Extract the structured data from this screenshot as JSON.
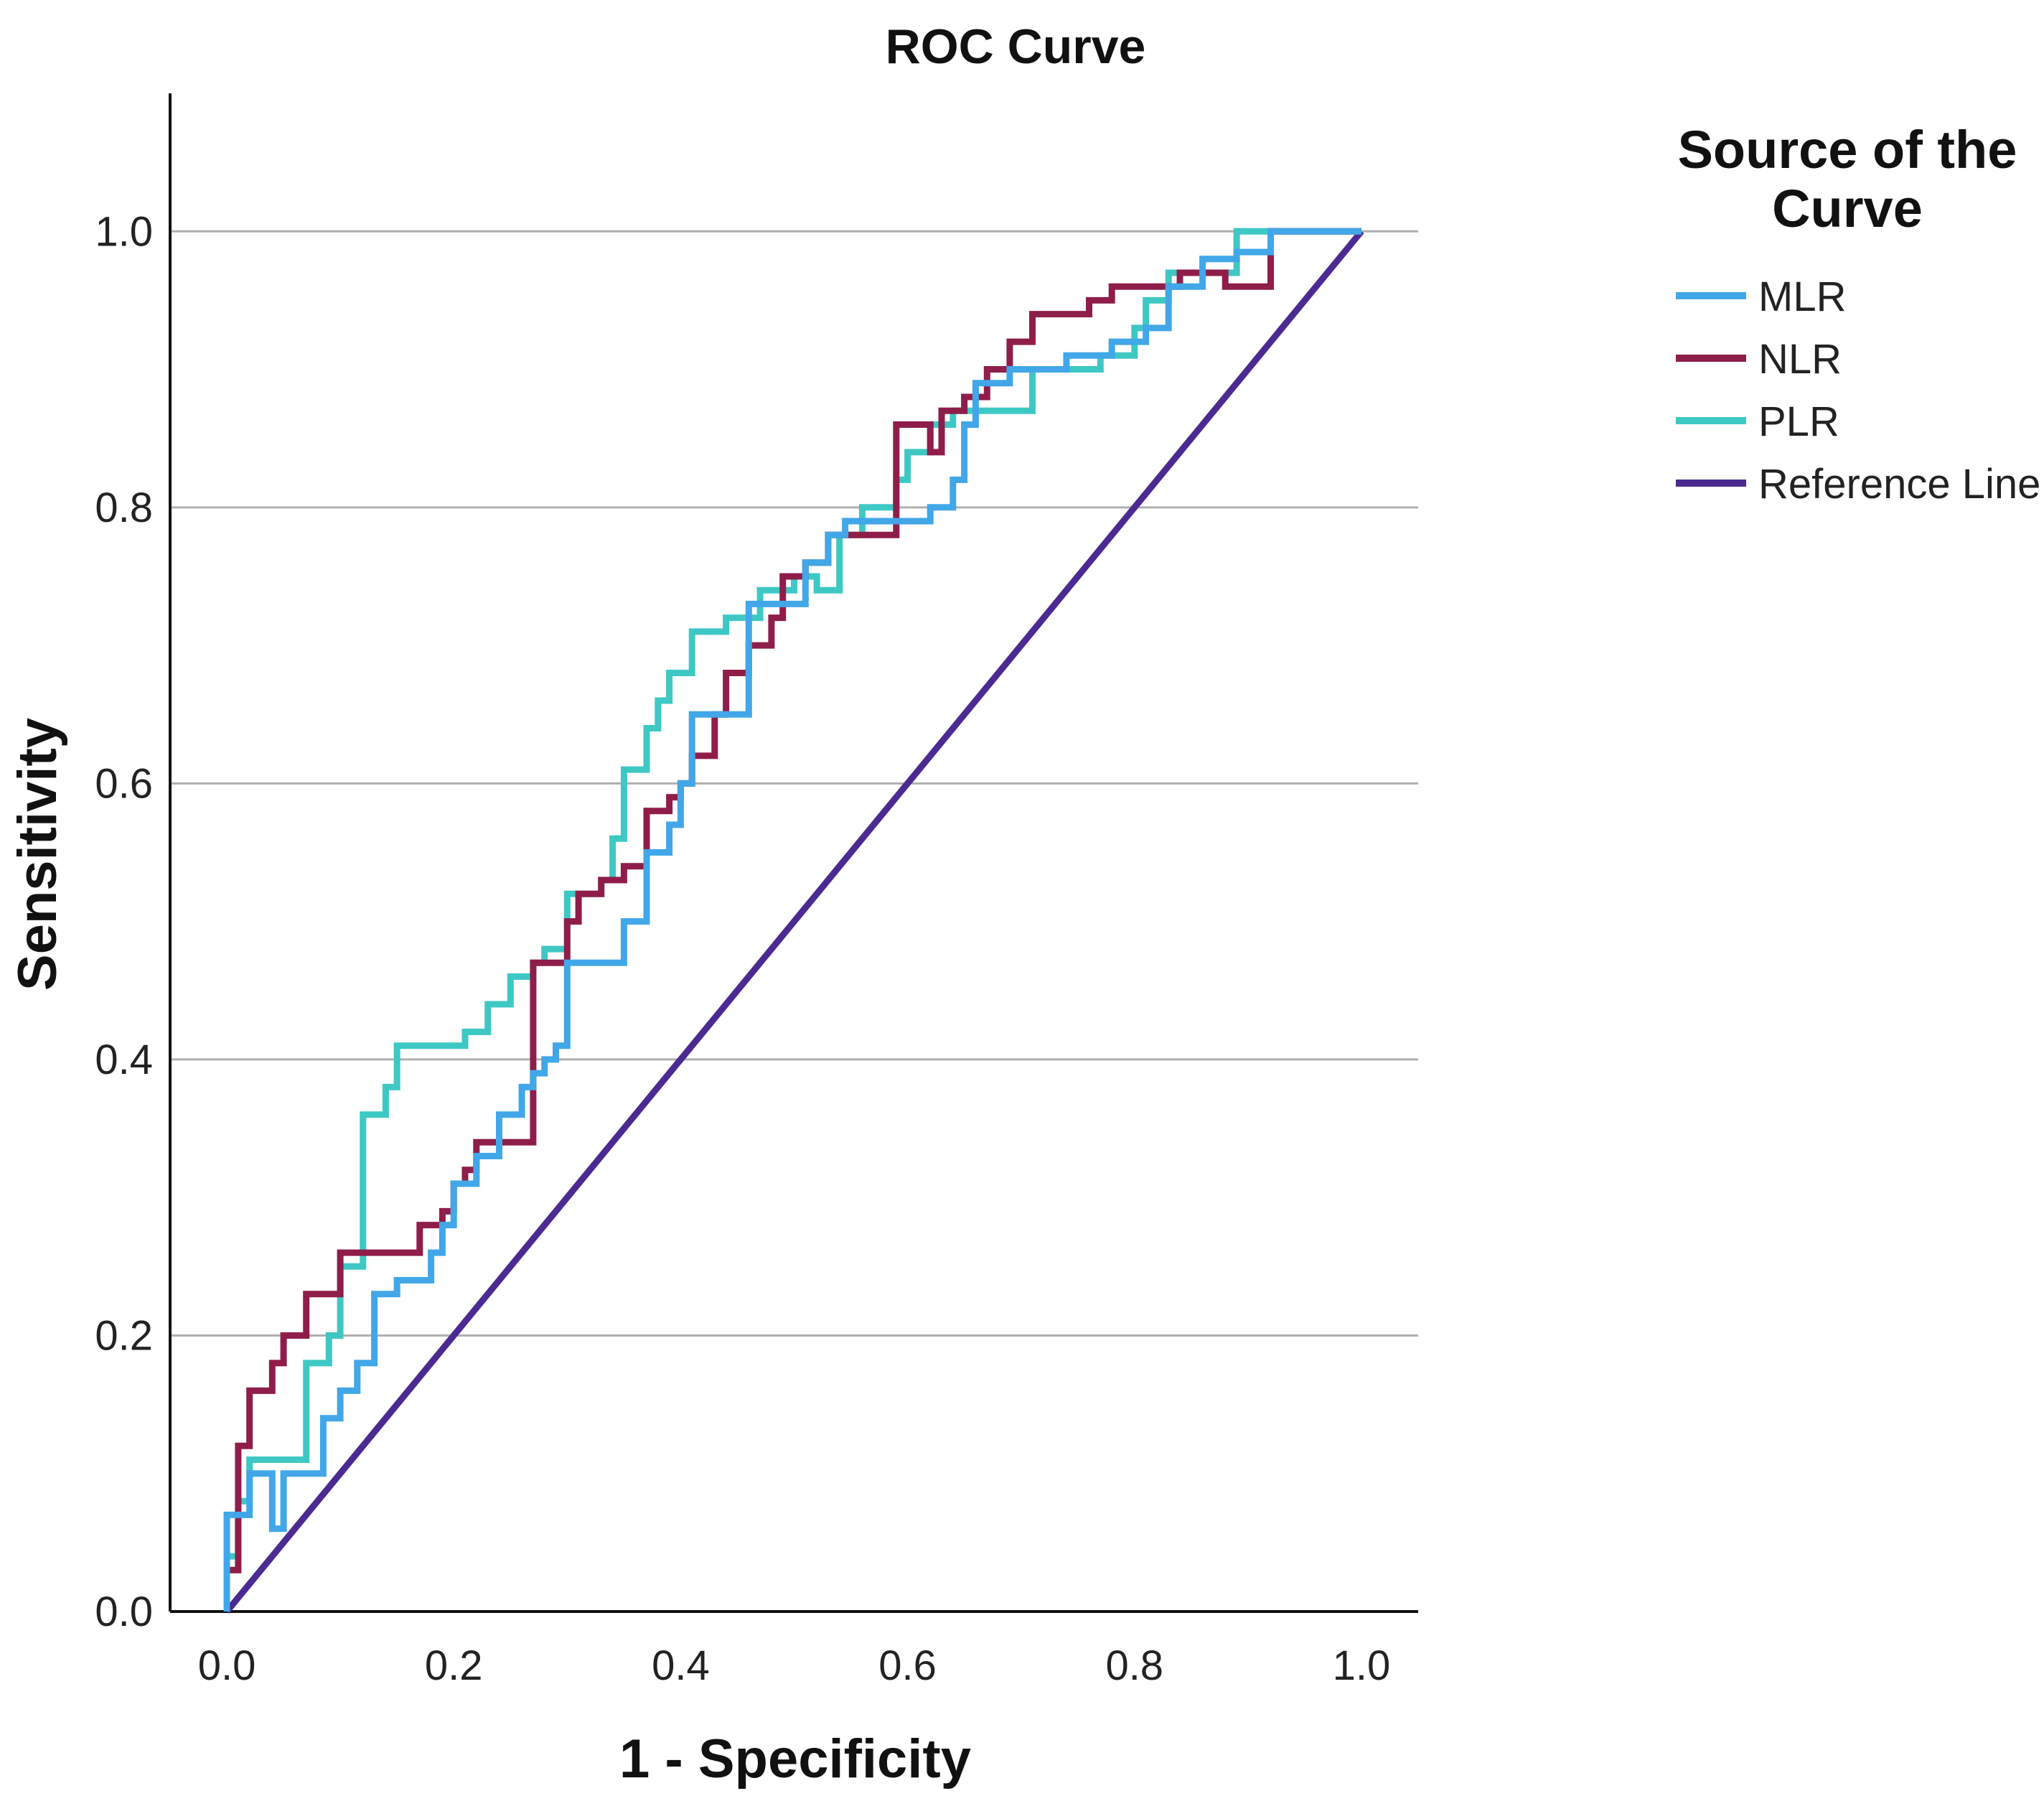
{
  "chart_data": {
    "type": "line",
    "title": "ROC Curve",
    "xlabel": "1 - Specificity",
    "ylabel": "Sensitivity",
    "xlim": [
      -0.05,
      1.05
    ],
    "ylim": [
      0,
      1.1
    ],
    "x_ticks": [
      "0.0",
      "0.2",
      "0.4",
      "0.6",
      "0.8",
      "1.0"
    ],
    "x_tick_values": [
      0,
      0.2,
      0.4,
      0.6,
      0.8,
      1.0
    ],
    "y_ticks": [
      "0.0",
      "0.2",
      "0.4",
      "0.6",
      "0.8",
      "1.0"
    ],
    "y_tick_values": [
      0,
      0.2,
      0.4,
      0.6,
      0.8,
      1.0
    ],
    "grid": "horizontal",
    "legend": {
      "title": "Source of the Curve",
      "title_lines": [
        "Source of the",
        "Curve"
      ],
      "position": "right"
    },
    "series": [
      {
        "name": "MLR",
        "color": "#41a7e8",
        "points": [
          [
            0,
            0
          ],
          [
            0,
            0.07
          ],
          [
            0.02,
            0.07
          ],
          [
            0.02,
            0.1
          ],
          [
            0.04,
            0.1
          ],
          [
            0.04,
            0.06
          ],
          [
            0.05,
            0.06
          ],
          [
            0.05,
            0.1
          ],
          [
            0.085,
            0.1
          ],
          [
            0.085,
            0.14
          ],
          [
            0.1,
            0.14
          ],
          [
            0.1,
            0.16
          ],
          [
            0.115,
            0.16
          ],
          [
            0.115,
            0.18
          ],
          [
            0.13,
            0.18
          ],
          [
            0.13,
            0.23
          ],
          [
            0.15,
            0.23
          ],
          [
            0.15,
            0.24
          ],
          [
            0.18,
            0.24
          ],
          [
            0.18,
            0.26
          ],
          [
            0.19,
            0.26
          ],
          [
            0.19,
            0.28
          ],
          [
            0.2,
            0.28
          ],
          [
            0.2,
            0.31
          ],
          [
            0.22,
            0.31
          ],
          [
            0.22,
            0.33
          ],
          [
            0.24,
            0.33
          ],
          [
            0.24,
            0.36
          ],
          [
            0.26,
            0.36
          ],
          [
            0.26,
            0.38
          ],
          [
            0.27,
            0.38
          ],
          [
            0.27,
            0.39
          ],
          [
            0.28,
            0.39
          ],
          [
            0.28,
            0.4
          ],
          [
            0.29,
            0.4
          ],
          [
            0.29,
            0.41
          ],
          [
            0.3,
            0.41
          ],
          [
            0.3,
            0.47
          ],
          [
            0.35,
            0.47
          ],
          [
            0.35,
            0.5
          ],
          [
            0.37,
            0.5
          ],
          [
            0.37,
            0.55
          ],
          [
            0.39,
            0.55
          ],
          [
            0.39,
            0.57
          ],
          [
            0.4,
            0.57
          ],
          [
            0.4,
            0.6
          ],
          [
            0.41,
            0.6
          ],
          [
            0.41,
            0.65
          ],
          [
            0.46,
            0.65
          ],
          [
            0.46,
            0.73
          ],
          [
            0.51,
            0.73
          ],
          [
            0.51,
            0.76
          ],
          [
            0.53,
            0.76
          ],
          [
            0.53,
            0.78
          ],
          [
            0.545,
            0.78
          ],
          [
            0.545,
            0.79
          ],
          [
            0.62,
            0.79
          ],
          [
            0.62,
            0.8
          ],
          [
            0.64,
            0.8
          ],
          [
            0.64,
            0.82
          ],
          [
            0.65,
            0.82
          ],
          [
            0.65,
            0.86
          ],
          [
            0.66,
            0.86
          ],
          [
            0.66,
            0.89
          ],
          [
            0.69,
            0.89
          ],
          [
            0.69,
            0.9
          ],
          [
            0.74,
            0.9
          ],
          [
            0.74,
            0.91
          ],
          [
            0.78,
            0.91
          ],
          [
            0.78,
            0.92
          ],
          [
            0.81,
            0.92
          ],
          [
            0.81,
            0.93
          ],
          [
            0.83,
            0.93
          ],
          [
            0.83,
            0.96
          ],
          [
            0.86,
            0.96
          ],
          [
            0.86,
            0.98
          ],
          [
            0.89,
            0.98
          ],
          [
            0.89,
            0.985
          ],
          [
            0.92,
            0.985
          ],
          [
            0.92,
            1.0
          ],
          [
            1.0,
            1.0
          ]
        ]
      },
      {
        "name": "NLR",
        "color": "#8f1d4a",
        "points": [
          [
            0,
            0
          ],
          [
            0,
            0.03
          ],
          [
            0.01,
            0.03
          ],
          [
            0.01,
            0.12
          ],
          [
            0.02,
            0.12
          ],
          [
            0.02,
            0.16
          ],
          [
            0.04,
            0.16
          ],
          [
            0.04,
            0.18
          ],
          [
            0.05,
            0.18
          ],
          [
            0.05,
            0.2
          ],
          [
            0.07,
            0.2
          ],
          [
            0.07,
            0.23
          ],
          [
            0.1,
            0.23
          ],
          [
            0.1,
            0.26
          ],
          [
            0.17,
            0.26
          ],
          [
            0.17,
            0.28
          ],
          [
            0.19,
            0.28
          ],
          [
            0.19,
            0.29
          ],
          [
            0.2,
            0.29
          ],
          [
            0.2,
            0.31
          ],
          [
            0.21,
            0.31
          ],
          [
            0.21,
            0.32
          ],
          [
            0.22,
            0.32
          ],
          [
            0.22,
            0.34
          ],
          [
            0.27,
            0.34
          ],
          [
            0.27,
            0.47
          ],
          [
            0.3,
            0.47
          ],
          [
            0.3,
            0.5
          ],
          [
            0.31,
            0.5
          ],
          [
            0.31,
            0.52
          ],
          [
            0.33,
            0.52
          ],
          [
            0.33,
            0.53
          ],
          [
            0.35,
            0.53
          ],
          [
            0.35,
            0.54
          ],
          [
            0.37,
            0.54
          ],
          [
            0.37,
            0.58
          ],
          [
            0.39,
            0.58
          ],
          [
            0.39,
            0.59
          ],
          [
            0.4,
            0.59
          ],
          [
            0.4,
            0.6
          ],
          [
            0.41,
            0.6
          ],
          [
            0.41,
            0.62
          ],
          [
            0.43,
            0.62
          ],
          [
            0.43,
            0.65
          ],
          [
            0.44,
            0.65
          ],
          [
            0.44,
            0.68
          ],
          [
            0.46,
            0.68
          ],
          [
            0.46,
            0.7
          ],
          [
            0.48,
            0.7
          ],
          [
            0.48,
            0.72
          ],
          [
            0.49,
            0.72
          ],
          [
            0.49,
            0.75
          ],
          [
            0.51,
            0.75
          ],
          [
            0.51,
            0.76
          ],
          [
            0.53,
            0.76
          ],
          [
            0.53,
            0.78
          ],
          [
            0.59,
            0.78
          ],
          [
            0.59,
            0.86
          ],
          [
            0.62,
            0.86
          ],
          [
            0.62,
            0.84
          ],
          [
            0.63,
            0.84
          ],
          [
            0.63,
            0.87
          ],
          [
            0.65,
            0.87
          ],
          [
            0.65,
            0.88
          ],
          [
            0.67,
            0.88
          ],
          [
            0.67,
            0.9
          ],
          [
            0.69,
            0.9
          ],
          [
            0.69,
            0.92
          ],
          [
            0.71,
            0.92
          ],
          [
            0.71,
            0.94
          ],
          [
            0.76,
            0.94
          ],
          [
            0.76,
            0.95
          ],
          [
            0.78,
            0.95
          ],
          [
            0.78,
            0.96
          ],
          [
            0.84,
            0.96
          ],
          [
            0.84,
            0.97
          ],
          [
            0.88,
            0.97
          ],
          [
            0.88,
            0.96
          ],
          [
            0.92,
            0.96
          ],
          [
            0.92,
            1.0
          ],
          [
            1.0,
            1.0
          ]
        ]
      },
      {
        "name": "PLR",
        "color": "#3ec8c4",
        "points": [
          [
            0,
            0
          ],
          [
            0,
            0.04
          ],
          [
            0.01,
            0.04
          ],
          [
            0.01,
            0.08
          ],
          [
            0.02,
            0.08
          ],
          [
            0.02,
            0.11
          ],
          [
            0.07,
            0.11
          ],
          [
            0.07,
            0.18
          ],
          [
            0.09,
            0.18
          ],
          [
            0.09,
            0.2
          ],
          [
            0.1,
            0.2
          ],
          [
            0.1,
            0.25
          ],
          [
            0.12,
            0.25
          ],
          [
            0.12,
            0.36
          ],
          [
            0.14,
            0.36
          ],
          [
            0.14,
            0.38
          ],
          [
            0.15,
            0.38
          ],
          [
            0.15,
            0.41
          ],
          [
            0.21,
            0.41
          ],
          [
            0.21,
            0.42
          ],
          [
            0.23,
            0.42
          ],
          [
            0.23,
            0.44
          ],
          [
            0.25,
            0.44
          ],
          [
            0.25,
            0.46
          ],
          [
            0.27,
            0.46
          ],
          [
            0.27,
            0.47
          ],
          [
            0.28,
            0.47
          ],
          [
            0.28,
            0.48
          ],
          [
            0.3,
            0.48
          ],
          [
            0.3,
            0.52
          ],
          [
            0.33,
            0.52
          ],
          [
            0.33,
            0.53
          ],
          [
            0.34,
            0.53
          ],
          [
            0.34,
            0.56
          ],
          [
            0.35,
            0.56
          ],
          [
            0.35,
            0.61
          ],
          [
            0.37,
            0.61
          ],
          [
            0.37,
            0.64
          ],
          [
            0.38,
            0.64
          ],
          [
            0.38,
            0.66
          ],
          [
            0.39,
            0.66
          ],
          [
            0.39,
            0.68
          ],
          [
            0.41,
            0.68
          ],
          [
            0.41,
            0.71
          ],
          [
            0.44,
            0.71
          ],
          [
            0.44,
            0.72
          ],
          [
            0.47,
            0.72
          ],
          [
            0.47,
            0.74
          ],
          [
            0.5,
            0.74
          ],
          [
            0.5,
            0.75
          ],
          [
            0.52,
            0.75
          ],
          [
            0.52,
            0.74
          ],
          [
            0.54,
            0.74
          ],
          [
            0.54,
            0.78
          ],
          [
            0.56,
            0.78
          ],
          [
            0.56,
            0.8
          ],
          [
            0.59,
            0.8
          ],
          [
            0.59,
            0.82
          ],
          [
            0.6,
            0.82
          ],
          [
            0.6,
            0.84
          ],
          [
            0.62,
            0.84
          ],
          [
            0.62,
            0.86
          ],
          [
            0.64,
            0.86
          ],
          [
            0.64,
            0.87
          ],
          [
            0.71,
            0.87
          ],
          [
            0.71,
            0.9
          ],
          [
            0.77,
            0.9
          ],
          [
            0.77,
            0.91
          ],
          [
            0.8,
            0.91
          ],
          [
            0.8,
            0.93
          ],
          [
            0.81,
            0.93
          ],
          [
            0.81,
            0.95
          ],
          [
            0.83,
            0.95
          ],
          [
            0.83,
            0.97
          ],
          [
            0.89,
            0.97
          ],
          [
            0.89,
            1.0
          ],
          [
            1.0,
            1.0
          ]
        ]
      },
      {
        "name": "Reference Line",
        "color": "#4b2a91",
        "points": [
          [
            0,
            0
          ],
          [
            1,
            1
          ]
        ]
      }
    ]
  }
}
